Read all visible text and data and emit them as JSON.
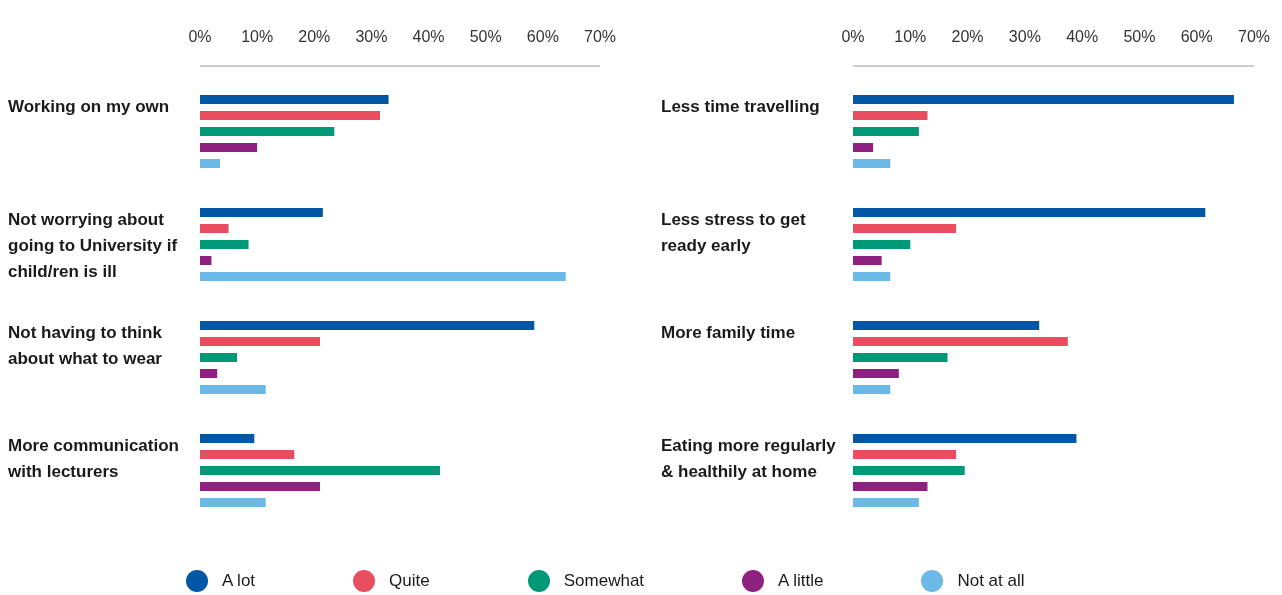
{
  "chart_data": [
    {
      "type": "bar",
      "orientation": "horizontal",
      "categories": [
        "Working on my own",
        "Not worrying about going to University if child/ren is ill",
        "Not having to think about what to wear",
        "More communication with lecturers"
      ],
      "series": [
        {
          "name": "A lot",
          "color": "#0057a6",
          "values": [
            33,
            21.5,
            58.5,
            9.5
          ]
        },
        {
          "name": "Quite",
          "color": "#e94e60",
          "values": [
            31.5,
            5,
            21,
            16.5
          ]
        },
        {
          "name": "Somewhat",
          "color": "#009977",
          "values": [
            23.5,
            8.5,
            6.5,
            42
          ]
        },
        {
          "name": "A little",
          "color": "#8e2180",
          "values": [
            10,
            2,
            3,
            21
          ]
        },
        {
          "name": "Not at all",
          "color": "#6ab9e6",
          "values": [
            3.5,
            64,
            11.5,
            11.5
          ]
        }
      ],
      "xlim": [
        0,
        70
      ],
      "xticks": [
        {
          "value": 0,
          "label": "0%"
        },
        {
          "value": 10,
          "label": "10%"
        },
        {
          "value": 20,
          "label": "20%"
        },
        {
          "value": 30,
          "label": "30%"
        },
        {
          "value": 40,
          "label": "40%"
        },
        {
          "value": 50,
          "label": "50%"
        },
        {
          "value": 60,
          "label": "60%"
        },
        {
          "value": 70,
          "label": "70%"
        }
      ],
      "grid": false,
      "legend": "bottom"
    },
    {
      "type": "bar",
      "orientation": "horizontal",
      "categories": [
        "Less time travelling",
        "Less stress to get ready early",
        "More family time",
        "Eating more regularly & healthily at home"
      ],
      "series": [
        {
          "color": "#0057a6",
          "values": [
            66.5,
            61.5,
            32.5,
            39
          ]
        },
        {
          "color": "#e94e60",
          "values": [
            13,
            18,
            37.5,
            18
          ]
        },
        {
          "color": "#009977",
          "values": [
            11.5,
            10,
            16.5,
            19.5
          ]
        },
        {
          "color": "#8e2180",
          "values": [
            3.5,
            5,
            8,
            13
          ]
        },
        {
          "color": "#6ab9e6",
          "values": [
            6.5,
            6.5,
            6.5,
            11.5
          ]
        }
      ],
      "xlim": [
        0,
        70
      ],
      "xticks": [
        {
          "value": 0,
          "label": "0%"
        },
        {
          "value": 10,
          "label": "10%"
        },
        {
          "value": 20,
          "label": "20%"
        },
        {
          "value": 30,
          "label": "30%"
        },
        {
          "value": 40,
          "label": "40%"
        },
        {
          "value": 50,
          "label": "50%"
        },
        {
          "value": 60,
          "label": "60%"
        },
        {
          "value": 70,
          "label": "70%"
        }
      ],
      "grid": false
    }
  ]
}
